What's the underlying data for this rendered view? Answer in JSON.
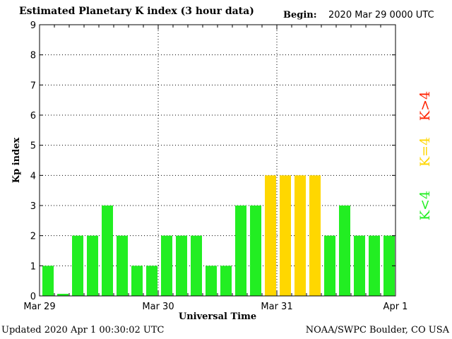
{
  "header": {
    "title": "Estimated Planetary K index (3 hour data)",
    "begin_label": "Begin:",
    "begin_value": "2020 Mar 29 0000 UTC"
  },
  "footer": {
    "updated": "Updated 2020 Apr  1 00:30:02 UTC",
    "source": "NOAA/SWPC Boulder, CO USA"
  },
  "legend": [
    {
      "label": "K<4",
      "color": "#22ee22"
    },
    {
      "label": "K=4",
      "color": "#ffd700"
    },
    {
      "label": "K>4",
      "color": "#ff2200"
    }
  ],
  "chart_data": {
    "type": "bar",
    "xlabel": "Universal Time",
    "ylabel": "Kp index",
    "ylim": [
      0,
      9
    ],
    "yticks": [
      0,
      1,
      2,
      3,
      4,
      5,
      6,
      7,
      8,
      9
    ],
    "day_labels": [
      "Mar 29",
      "Mar 30",
      "Mar 31",
      "Apr 1"
    ],
    "grid": true,
    "values": [
      1,
      0.07,
      2,
      2,
      3,
      2,
      1,
      1,
      2,
      2,
      2,
      1,
      1,
      3,
      3,
      4,
      4,
      4,
      4,
      2,
      3,
      2,
      2,
      2
    ],
    "colors": {
      "below4": "#22ee22",
      "equal4": "#ffd700",
      "above4": "#ff2200"
    }
  }
}
